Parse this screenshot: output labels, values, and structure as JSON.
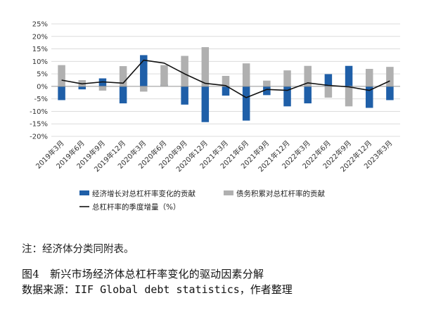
{
  "chart_data": {
    "type": "bar",
    "categories": [
      "2019年3月",
      "2019年6月",
      "2019年9月",
      "2019年12月",
      "2020年3月",
      "2020年6月",
      "2020年9月",
      "2020年12月",
      "2021年3月",
      "2021年6月",
      "2021年9月",
      "2021年12月",
      "2022年3月",
      "2022年6月",
      "2022年9月",
      "2022年12月",
      "2023年3月"
    ],
    "y_ticks": [
      "25%",
      "20%",
      "15%",
      "10%",
      "5%",
      "0%",
      "-5%",
      "-10%",
      "-15%",
      "-20%"
    ],
    "ylim": [
      -20,
      25
    ],
    "grid": true,
    "legend_position": "bottom",
    "series": [
      {
        "name": "经济增长对总杠杆率变化的贡献",
        "type": "bar",
        "color": "#1f5fa8",
        "values": [
          -5.5,
          -1.2,
          3.2,
          -6.8,
          12.5,
          0.8,
          -7.3,
          -14.3,
          -3.7,
          -13.7,
          -3.5,
          -8.0,
          -6.8,
          4.9,
          8.2,
          -8.6,
          -5.5
        ]
      },
      {
        "name": "债务积累对总杠杆率的贡献",
        "type": "bar",
        "color": "#b0b0b0",
        "values": [
          8.5,
          2.5,
          -1.7,
          8.1,
          -2.1,
          8.5,
          12.2,
          15.7,
          4.2,
          9.2,
          2.3,
          6.4,
          8.2,
          -4.5,
          -8.0,
          7.0,
          7.8
        ]
      },
      {
        "name": "总杠杆率的季度增量（%）",
        "type": "line",
        "color": "#111111",
        "values": [
          2.5,
          1.0,
          1.8,
          1.3,
          10.5,
          9.3,
          5.0,
          1.2,
          0.3,
          -4.5,
          -1.2,
          -1.6,
          1.4,
          0.4,
          -0.2,
          -1.6,
          2.2
        ]
      }
    ]
  },
  "note": "注：经济体分类同附表。",
  "figure_title": "图4　新兴市场经济体总杠杆率变化的驱动因素分解",
  "source": "数据来源：IIF Global debt statistics，作者整理"
}
